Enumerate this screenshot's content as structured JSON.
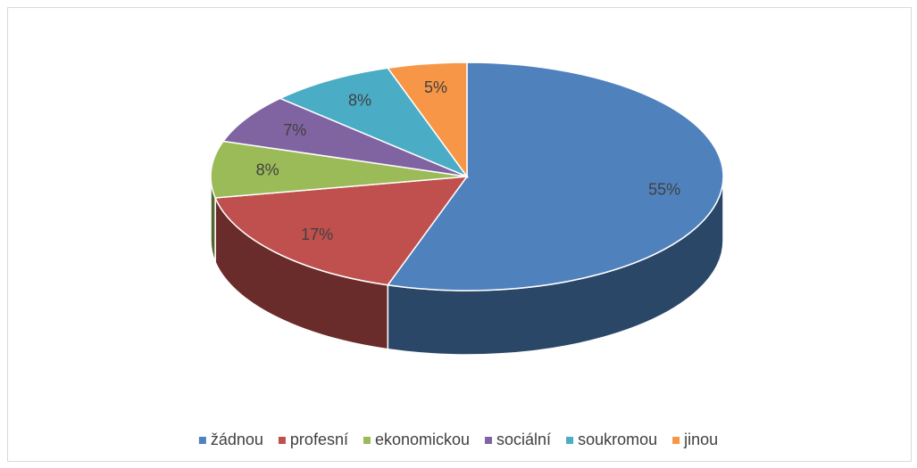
{
  "chart_data": {
    "type": "pie3d",
    "categories": [
      "žádnou",
      "profesní",
      "ekonomickou",
      "sociální",
      "soukromou",
      "jinou"
    ],
    "values": [
      55,
      17,
      8,
      7,
      8,
      5
    ],
    "value_labels": [
      "55%",
      "17%",
      "8%",
      "7%",
      "8%",
      "5%"
    ],
    "colors": [
      "#4f81bd",
      "#c0504d",
      "#9bbb59",
      "#8064a2",
      "#4bacc6",
      "#f79646"
    ],
    "legend": "bottom"
  }
}
